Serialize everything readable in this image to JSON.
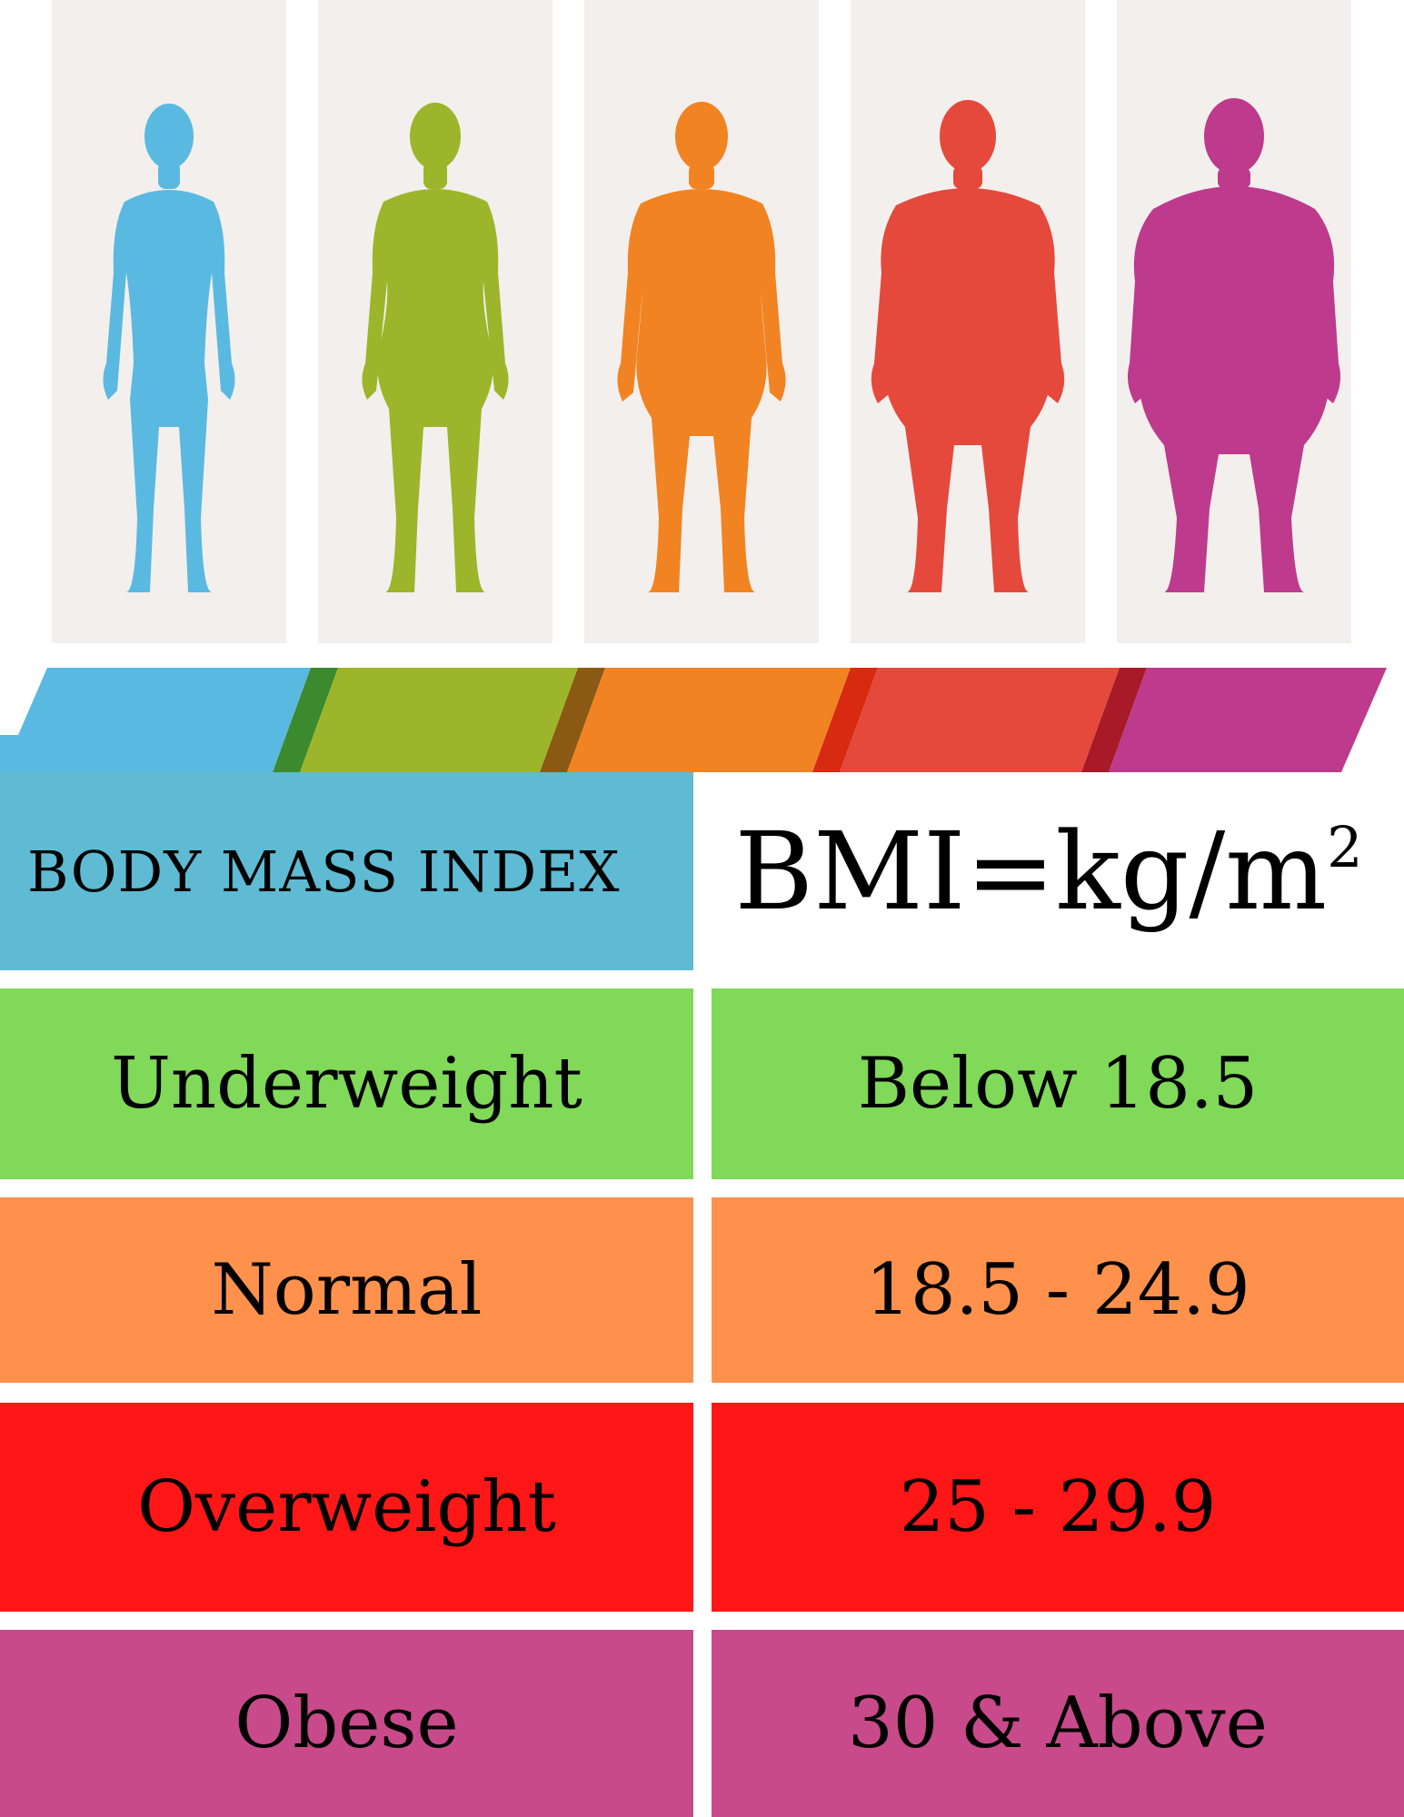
{
  "header": {
    "title": "BODY MASS INDEX",
    "formula_base": "BMI=kg/m",
    "formula_exponent": "2"
  },
  "figures": [
    {
      "icon": "slim-woman-silhouette-icon",
      "color": "#5ab9e0"
    },
    {
      "icon": "normal-woman-silhouette-icon",
      "color": "#9db52a"
    },
    {
      "icon": "overweight-woman-silhouette-icon",
      "color": "#f28322"
    },
    {
      "icon": "heavy-woman-silhouette-icon",
      "color": "#e4493b"
    },
    {
      "icon": "obese-woman-silhouette-icon",
      "color": "#bd3a8c"
    }
  ],
  "rows": [
    {
      "category": "Underweight",
      "range": "Below 18.5",
      "color": "#80d958"
    },
    {
      "category": "Normal",
      "range": "18.5 - 24.9",
      "color": "#ff914d"
    },
    {
      "category": "Overweight",
      "range": "25 - 29.9",
      "color": "#ff1717"
    },
    {
      "category": "Obese",
      "range": "30 & Above",
      "color": "#c94a8b"
    }
  ],
  "colors": {
    "title_bg": "#5ebbd3",
    "panel_bg": "#f3efed"
  }
}
